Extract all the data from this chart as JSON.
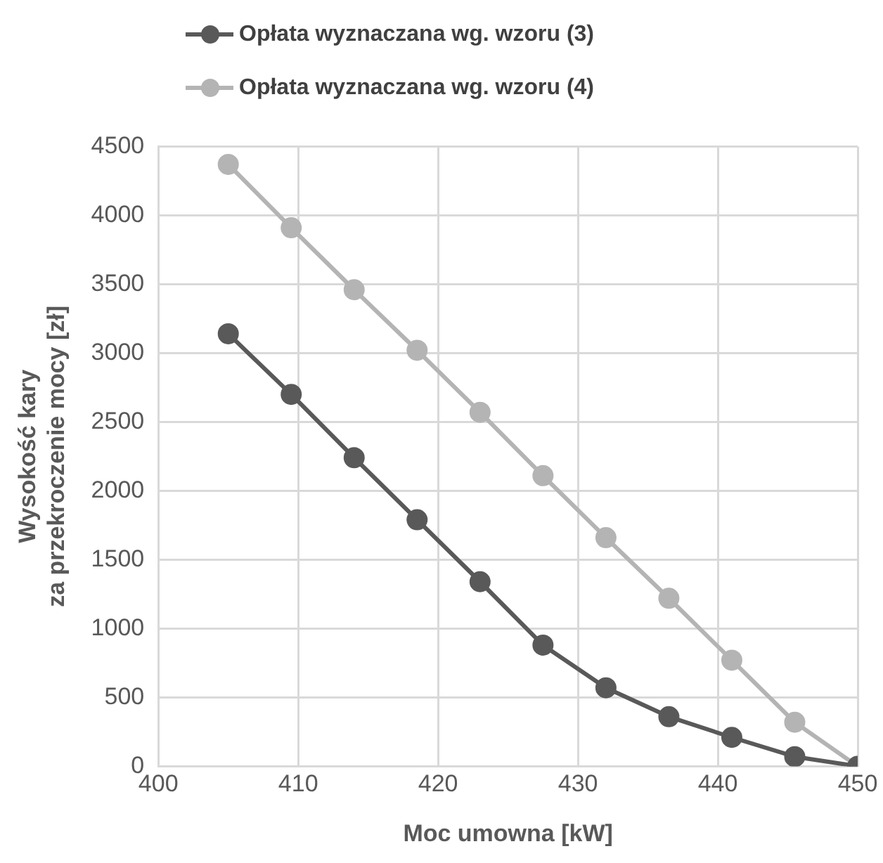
{
  "chart_data": {
    "type": "line",
    "xlabel": "Moc umowna [kW]",
    "ylabel": "Wysokość kary\nza przekroczenie mocy [zł]",
    "x": [
      405,
      409.5,
      414,
      418.5,
      423,
      427.5,
      432,
      436.5,
      441,
      445.5,
      450
    ],
    "series": [
      {
        "name": "Opłata wyznaczana wg. wzoru (3)",
        "color": "#595959",
        "values": [
          3140,
          2700,
          2240,
          1790,
          1340,
          880,
          570,
          360,
          210,
          70,
          0
        ]
      },
      {
        "name": "Opłata wyznaczana wg. wzoru (4)",
        "color": "#b4b4b4",
        "values": [
          4370,
          3910,
          3460,
          3020,
          2570,
          2110,
          1660,
          1220,
          770,
          320,
          0
        ]
      }
    ],
    "xlim": [
      400,
      450
    ],
    "xticks": [
      400,
      410,
      420,
      430,
      440,
      450
    ],
    "ylim": [
      0,
      4500
    ],
    "yticks": [
      0,
      500,
      1000,
      1500,
      2000,
      2500,
      3000,
      3500,
      4000,
      4500
    ],
    "grid": true,
    "legend": "top",
    "marker": "circle",
    "line_style": "solid"
  }
}
